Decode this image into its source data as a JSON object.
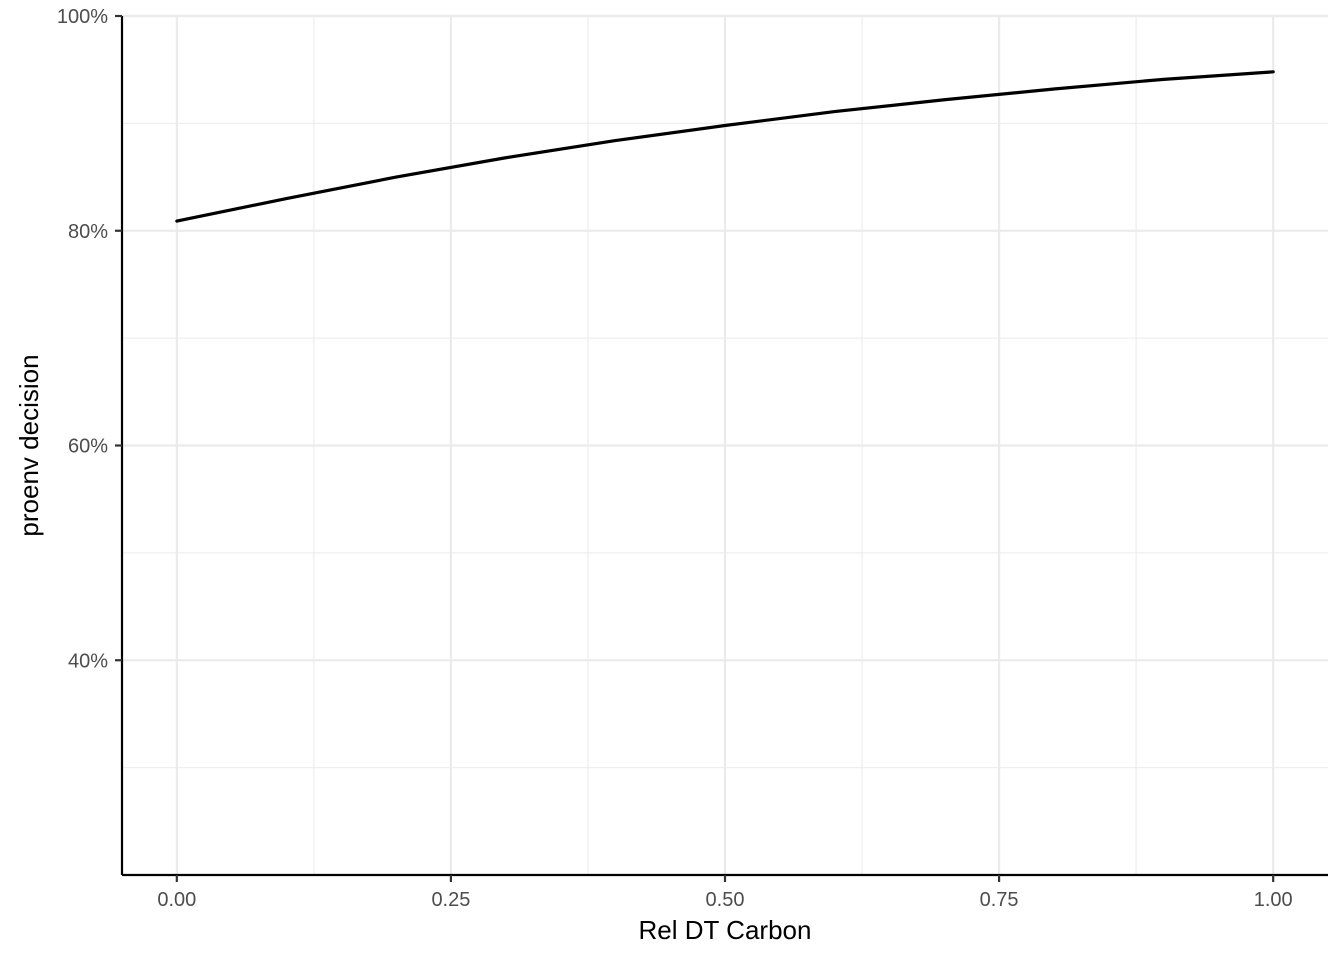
{
  "chart_data": {
    "type": "line",
    "title": "",
    "xlabel": "Rel DT Carbon",
    "ylabel": "proenv decision",
    "xlim": [
      -0.05,
      1.05
    ],
    "ylim": [
      0.2,
      1.0
    ],
    "x_ticks": [
      0,
      0.25,
      0.5,
      0.75,
      1.0
    ],
    "x_tick_labels": [
      "0.00",
      "0.25",
      "0.50",
      "0.75",
      "1.00"
    ],
    "y_ticks": [
      0.4,
      0.6,
      0.8,
      1.0
    ],
    "y_tick_labels": [
      "40%",
      "60%",
      "80%",
      "100%"
    ],
    "grid": true,
    "legend": "none",
    "colors": {
      "line": "#000000",
      "grid": "#ebebeb",
      "axis": "#000000"
    },
    "series": [
      {
        "x": [
          0,
          0.1,
          0.2,
          0.3,
          0.4,
          0.5,
          0.6,
          0.7,
          0.8,
          0.9,
          1.0
        ],
        "y": [
          0.809,
          0.83,
          0.85,
          0.868,
          0.884,
          0.898,
          0.911,
          0.922,
          0.932,
          0.941,
          0.948
        ]
      }
    ]
  }
}
